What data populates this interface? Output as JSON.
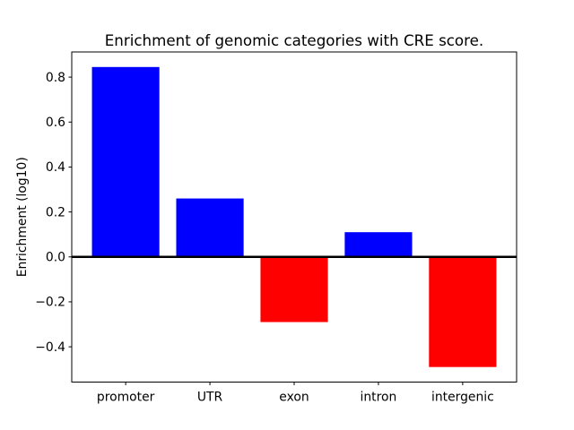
{
  "figure": {
    "background_color": "#ffffff"
  },
  "chart_data": {
    "type": "bar",
    "title": "Enrichment of genomic categories with CRE score.",
    "xlabel": "",
    "ylabel": "Enrichment (log10)",
    "categories": [
      "promoter",
      "UTR",
      "exon",
      "intron",
      "intergenic"
    ],
    "values": [
      0.845,
      0.26,
      -0.29,
      0.11,
      -0.49
    ],
    "bar_width": 0.8,
    "positive_color": "#0000ff",
    "negative_color": "#ff0000",
    "zero_line_color": "#000000",
    "axis_color": "#000000",
    "xlim": [
      -0.64,
      4.64
    ],
    "ylim": [
      -0.557,
      0.912
    ],
    "yticks": [
      0.8,
      0.6,
      0.4,
      0.2,
      0.0,
      -0.2,
      -0.4
    ],
    "ytick_labels": [
      "0.8",
      "0.6",
      "0.4",
      "0.2",
      "0.0",
      "−0.2",
      "−0.4"
    ],
    "grid": false,
    "legend": "none"
  }
}
